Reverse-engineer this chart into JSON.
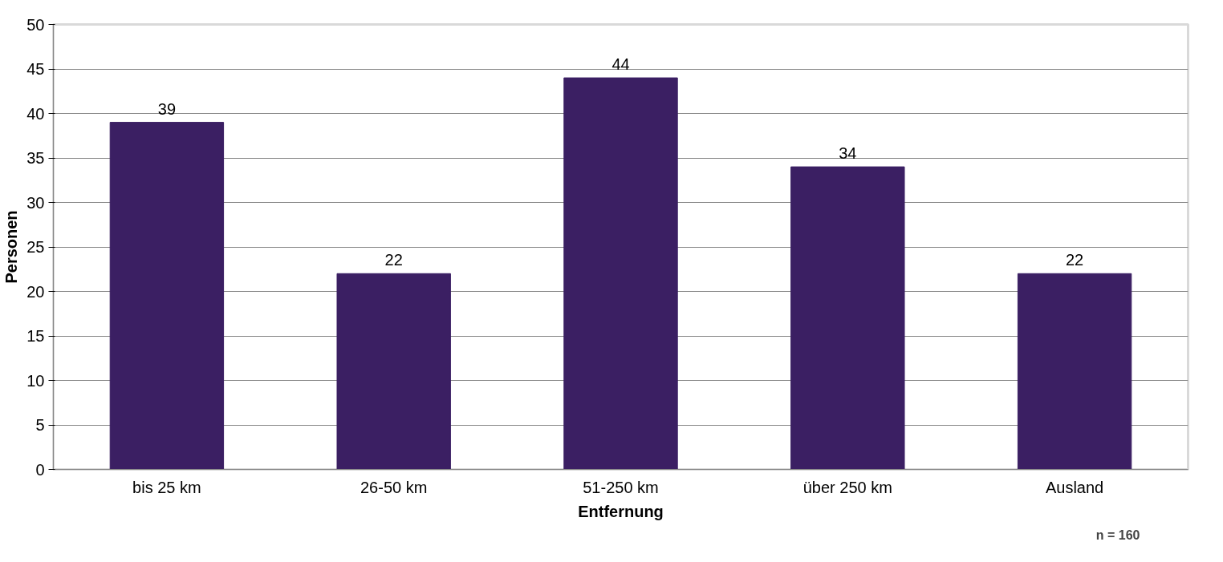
{
  "chart_data": {
    "type": "bar",
    "xlabel": "Entfernung",
    "ylabel": "Personen",
    "categories": [
      "bis 25 km",
      "26-50 km",
      "51-250 km",
      "über 250 km",
      "Ausland"
    ],
    "values": [
      39,
      22,
      44,
      34,
      22
    ],
    "color": "#3b1f63",
    "ylim": [
      0,
      50
    ],
    "yticks": [
      0,
      5,
      10,
      15,
      20,
      25,
      30,
      35,
      40,
      45,
      50
    ],
    "grid": "y",
    "data_labels": true,
    "annotations": [
      "n = 160"
    ]
  }
}
